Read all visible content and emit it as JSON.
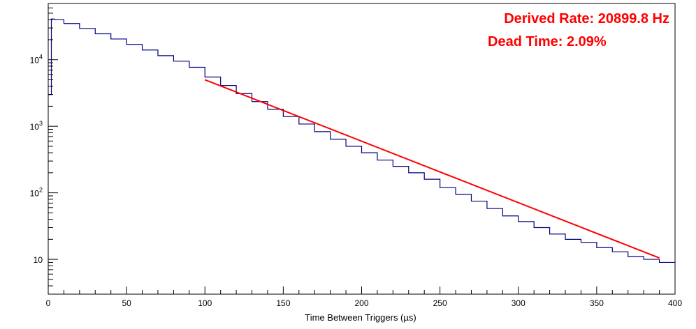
{
  "chart_data": {
    "type": "line",
    "title": "",
    "xlabel": "Time Between Triggers (µs)",
    "ylabel": "",
    "xlim": [
      0,
      400
    ],
    "ylim": [
      3,
      70000
    ],
    "y_scale": "log",
    "grid": false,
    "x_ticks": [
      "0",
      "50",
      "100",
      "150",
      "200",
      "250",
      "300",
      "350",
      "400"
    ],
    "y_ticks": [
      {
        "base": "10",
        "exp": ""
      },
      {
        "base": "10",
        "exp": "2"
      },
      {
        "base": "10",
        "exp": "3"
      },
      {
        "base": "10",
        "exp": "4"
      }
    ],
    "annotations": [
      "Derived Rate: 20899.8 Hz",
      "Dead Time: 2.09%"
    ],
    "colors": {
      "histogram": "#000080",
      "fit": "#ff0000",
      "annotation": "#ff0000"
    },
    "series": [
      {
        "kind": "histogram",
        "x": [
          0,
          2,
          4,
          10,
          20,
          30,
          40,
          50,
          60,
          70,
          80,
          90,
          100,
          110,
          120,
          130,
          140,
          150,
          160,
          170,
          180,
          190,
          200,
          210,
          220,
          230,
          240,
          250,
          260,
          270,
          280,
          290,
          300,
          310,
          320,
          330,
          340,
          350,
          360,
          370,
          380,
          390,
          400
        ],
        "values": [
          3000,
          41000,
          40000,
          35000,
          29500,
          24500,
          20500,
          17000,
          14000,
          11500,
          9500,
          7700,
          5500,
          4100,
          3100,
          2350,
          1800,
          1400,
          1080,
          830,
          640,
          500,
          400,
          310,
          250,
          200,
          160,
          120,
          95,
          75,
          58,
          45,
          37,
          30,
          24,
          20,
          18,
          15,
          13,
          11,
          10,
          9,
          9
        ]
      },
      {
        "kind": "fit",
        "x": [
          100,
          390
        ],
        "values": [
          5000,
          10.5
        ]
      }
    ]
  }
}
